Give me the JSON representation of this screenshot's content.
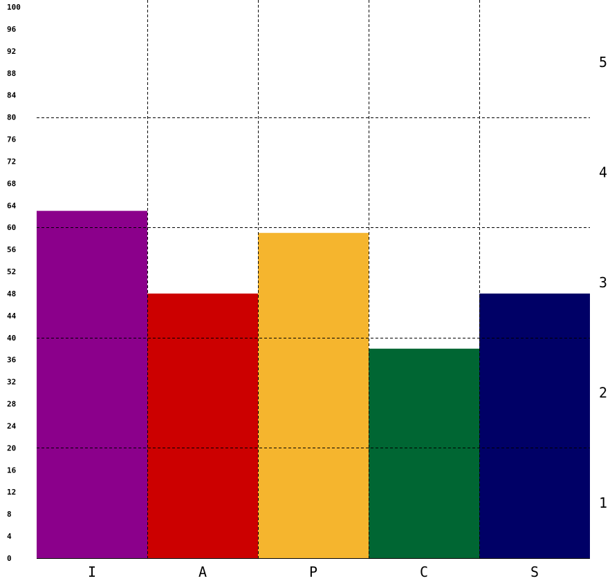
{
  "chart_data": {
    "type": "bar",
    "categories": [
      "I",
      "A",
      "P",
      "C",
      "S"
    ],
    "values": [
      63,
      48,
      59,
      38,
      48
    ],
    "colors": [
      "#8b008b",
      "#cc0000",
      "#f5b52e",
      "#006633",
      "#000066"
    ],
    "ylim": [
      0,
      100
    ],
    "y_ticks": [
      "0",
      "4",
      "8",
      "12",
      "16",
      "20",
      "24",
      "28",
      "32",
      "36",
      "40",
      "44",
      "48",
      "52",
      "56",
      "60",
      "64",
      "68",
      "72",
      "76",
      "80",
      "84",
      "88",
      "92",
      "96",
      "100"
    ],
    "right_axis_labels": [
      "1",
      "2",
      "3",
      "4",
      "5"
    ],
    "horizontal_gridlines_at": [
      20,
      40,
      60,
      80
    ],
    "grid": true,
    "xlabel": "",
    "ylabel": "",
    "title": ""
  }
}
